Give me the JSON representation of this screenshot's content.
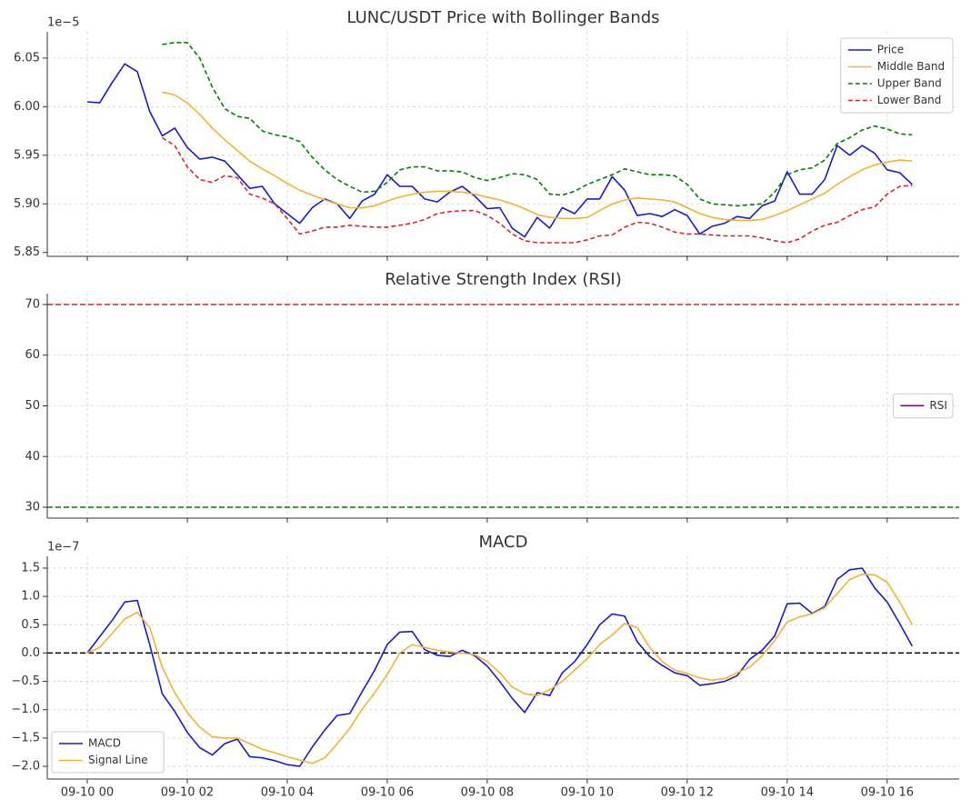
{
  "chart_data": [
    {
      "type": "line",
      "title": "LUNC/USDT Price with Bollinger Bands",
      "offset_label": "1e−5",
      "x": [
        0,
        0.25,
        0.5,
        0.75,
        1,
        1.25,
        1.5,
        1.75,
        2,
        2.25,
        2.5,
        2.75,
        3,
        3.25,
        3.5,
        3.75,
        4,
        4.25,
        4.5,
        4.75,
        5,
        5.25,
        5.5,
        5.75,
        6,
        6.25,
        6.5,
        6.75,
        7,
        7.25,
        7.5,
        7.75,
        8,
        8.25,
        8.5,
        8.75,
        9,
        9.25,
        9.5,
        9.75,
        10,
        10.25,
        10.5,
        10.75,
        11,
        11.25,
        11.5,
        11.75,
        12,
        12.25,
        12.5,
        12.75,
        13,
        13.25,
        13.5,
        13.75,
        14,
        14.25,
        14.5,
        14.75,
        15,
        15.25,
        15.5,
        15.75,
        16,
        16.25,
        16.5
      ],
      "series": [
        {
          "name": "Price",
          "color": "#1a1acc",
          "dash": false,
          "values": [
            6.005,
            6.004,
            6.025,
            6.044,
            6.036,
            5.995,
            5.97,
            5.978,
            5.958,
            5.946,
            5.948,
            5.944,
            5.93,
            5.916,
            5.918,
            5.9,
            5.89,
            5.88,
            5.896,
            5.905,
            5.9,
            5.885,
            5.903,
            5.91,
            5.93,
            5.918,
            5.918,
            5.905,
            5.902,
            5.912,
            5.918,
            5.908,
            5.895,
            5.896,
            5.875,
            5.866,
            5.886,
            5.875,
            5.896,
            5.89,
            5.905,
            5.905,
            5.928,
            5.914,
            5.888,
            5.89,
            5.887,
            5.894,
            5.888,
            5.869,
            5.877,
            5.88,
            5.887,
            5.885,
            5.898,
            5.903,
            5.933,
            5.91,
            5.91,
            5.925,
            5.96,
            5.95,
            5.96,
            5.952,
            5.935,
            5.932,
            5.92
          ]
        },
        {
          "name": "Middle Band",
          "color": "#f5b133",
          "dash": false,
          "values": [
            null,
            null,
            null,
            null,
            null,
            null,
            6.015,
            6.012,
            6.004,
            5.992,
            5.978,
            5.966,
            5.955,
            5.944,
            5.936,
            5.929,
            5.921,
            5.914,
            5.909,
            5.904,
            5.9,
            5.896,
            5.896,
            5.898,
            5.903,
            5.907,
            5.91,
            5.912,
            5.913,
            5.913,
            5.912,
            5.91,
            5.907,
            5.904,
            5.9,
            5.895,
            5.889,
            5.886,
            5.885,
            5.885,
            5.886,
            5.893,
            5.9,
            5.904,
            5.906,
            5.905,
            5.904,
            5.902,
            5.896,
            5.89,
            5.886,
            5.884,
            5.883,
            5.883,
            5.884,
            5.888,
            5.893,
            5.899,
            5.905,
            5.911,
            5.92,
            5.928,
            5.935,
            5.94,
            5.943,
            5.945,
            5.944
          ]
        },
        {
          "name": "Upper Band",
          "color": "#008000",
          "dash": true,
          "values": [
            null,
            null,
            null,
            null,
            null,
            null,
            6.064,
            6.066,
            6.066,
            6.05,
            6.02,
            5.998,
            5.99,
            5.988,
            5.975,
            5.971,
            5.969,
            5.964,
            5.948,
            5.935,
            5.925,
            5.918,
            5.912,
            5.913,
            5.922,
            5.935,
            5.938,
            5.938,
            5.934,
            5.934,
            5.933,
            5.927,
            5.924,
            5.927,
            5.931,
            5.93,
            5.925,
            5.91,
            5.909,
            5.913,
            5.92,
            5.925,
            5.93,
            5.936,
            5.933,
            5.93,
            5.93,
            5.929,
            5.92,
            5.905,
            5.9,
            5.899,
            5.898,
            5.899,
            5.9,
            5.912,
            5.93,
            5.935,
            5.937,
            5.945,
            5.962,
            5.968,
            5.976,
            5.98,
            5.977,
            5.972,
            5.971
          ]
        },
        {
          "name": "Lower Band",
          "color": "#d62728",
          "dash": true,
          "values": [
            null,
            null,
            null,
            null,
            null,
            null,
            5.968,
            5.96,
            5.938,
            5.925,
            5.922,
            5.929,
            5.927,
            5.91,
            5.906,
            5.9,
            5.885,
            5.869,
            5.872,
            5.876,
            5.876,
            5.878,
            5.877,
            5.876,
            5.876,
            5.878,
            5.88,
            5.884,
            5.89,
            5.892,
            5.893,
            5.893,
            5.888,
            5.88,
            5.869,
            5.862,
            5.86,
            5.86,
            5.86,
            5.86,
            5.863,
            5.867,
            5.868,
            5.876,
            5.881,
            5.88,
            5.876,
            5.871,
            5.869,
            5.869,
            5.868,
            5.867,
            5.867,
            5.867,
            5.865,
            5.862,
            5.86,
            5.864,
            5.872,
            5.878,
            5.881,
            5.888,
            5.894,
            5.897,
            5.91,
            5.918,
            5.919
          ]
        }
      ],
      "xlim": [
        -0.8,
        17.44
      ],
      "xticks": [
        0,
        2,
        4,
        6,
        8,
        10,
        12,
        14,
        16
      ],
      "ylim": [
        5.846,
        6.077
      ],
      "yticks": [
        5.85,
        {
          "value": 5.9,
          "label": "5.90"
        },
        5.95,
        {
          "value": 6,
          "label": "6.00"
        },
        6.05
      ],
      "grid": true,
      "legend_loc": "upper right"
    },
    {
      "type": "line",
      "title": "Relative Strength Index (RSI)",
      "series": [
        {
          "name": "RSI",
          "color": "#800080",
          "dash": false
        }
      ],
      "hlines": [
        {
          "value": 70,
          "color": "#d62728"
        },
        {
          "value": 30,
          "color": "#008000"
        }
      ],
      "xlim": [
        -0.8,
        17.44
      ],
      "xticks": [
        0,
        2,
        4,
        6,
        8,
        10,
        12,
        14,
        16
      ],
      "ylim": [
        27.85,
        72.15
      ],
      "yticks": [
        30,
        40,
        50,
        60,
        70
      ],
      "grid": true,
      "legend_loc": "center right"
    },
    {
      "type": "line",
      "title": "MACD",
      "offset_label": "1e−7",
      "x": [
        0,
        0.25,
        0.5,
        0.75,
        1,
        1.25,
        1.5,
        1.75,
        2,
        2.25,
        2.5,
        2.75,
        3,
        3.25,
        3.5,
        3.75,
        4,
        4.25,
        4.5,
        4.75,
        5,
        5.25,
        5.5,
        5.75,
        6,
        6.25,
        6.5,
        6.75,
        7,
        7.25,
        7.5,
        7.75,
        8,
        8.25,
        8.5,
        8.75,
        9,
        9.25,
        9.5,
        9.75,
        10,
        10.25,
        10.5,
        10.75,
        11,
        11.25,
        11.5,
        11.75,
        12,
        12.25,
        12.5,
        12.75,
        13,
        13.25,
        13.5,
        13.75,
        14,
        14.25,
        14.5,
        14.75,
        15,
        15.25,
        15.5,
        15.75,
        16,
        16.25,
        16.5
      ],
      "series": [
        {
          "name": "MACD",
          "color": "#1a1acc",
          "dash": false,
          "values": [
            0,
            0.29,
            0.58,
            0.9,
            0.93,
            0.15,
            -0.72,
            -1.03,
            -1.4,
            -1.67,
            -1.8,
            -1.6,
            -1.52,
            -1.83,
            -1.85,
            -1.9,
            -1.97,
            -2.0,
            -1.66,
            -1.36,
            -1.1,
            -1.07,
            -0.68,
            -0.3,
            0.15,
            0.37,
            0.38,
            0.06,
            -0.04,
            -0.06,
            0.05,
            -0.05,
            -0.23,
            -0.5,
            -0.8,
            -1.05,
            -0.7,
            -0.75,
            -0.35,
            -0.15,
            0.15,
            0.5,
            0.69,
            0.65,
            0.2,
            -0.06,
            -0.22,
            -0.35,
            -0.4,
            -0.57,
            -0.54,
            -0.5,
            -0.4,
            -0.11,
            0.05,
            0.3,
            0.87,
            0.88,
            0.7,
            0.82,
            1.3,
            1.47,
            1.5,
            1.15,
            0.9,
            0.52,
            0.12
          ]
        },
        {
          "name": "Signal Line",
          "color": "#f5b133",
          "dash": false,
          "values": [
            0,
            0.1,
            0.35,
            0.6,
            0.72,
            0.45,
            -0.25,
            -0.7,
            -1.05,
            -1.31,
            -1.48,
            -1.5,
            -1.5,
            -1.6,
            -1.7,
            -1.76,
            -1.83,
            -1.89,
            -1.95,
            -1.85,
            -1.6,
            -1.33,
            -0.99,
            -0.7,
            -0.38,
            0,
            0.15,
            0.1,
            0.05,
            0.02,
            0,
            -0.03,
            -0.15,
            -0.35,
            -0.6,
            -0.72,
            -0.75,
            -0.65,
            -0.5,
            -0.3,
            -0.1,
            0.15,
            0.32,
            0.52,
            0.45,
            0.1,
            -0.15,
            -0.3,
            -0.36,
            -0.44,
            -0.48,
            -0.45,
            -0.35,
            -0.25,
            -0.05,
            0.22,
            0.55,
            0.64,
            0.69,
            0.8,
            1.05,
            1.3,
            1.39,
            1.38,
            1.25,
            0.9,
            0.5
          ]
        }
      ],
      "hlines": [
        {
          "value": 0,
          "color": "#000000"
        }
      ],
      "xlim": [
        -0.8,
        17.44
      ],
      "xticks": [
        {
          "value": 0,
          "label": "09-10 00"
        },
        {
          "value": 2,
          "label": "09-10 02"
        },
        {
          "value": 4,
          "label": "09-10 04"
        },
        {
          "value": 6,
          "label": "09-10 06"
        },
        {
          "value": 8,
          "label": "09-10 08"
        },
        {
          "value": 10,
          "label": "09-10 10"
        },
        {
          "value": 12,
          "label": "09-10 12"
        },
        {
          "value": 14,
          "label": "09-10 14"
        },
        {
          "value": 16,
          "label": "09-10 16"
        }
      ],
      "ylim": [
        -2.224,
        1.708
      ],
      "yticks": [
        {
          "value": -2,
          "label": "−2.0"
        },
        {
          "value": -1.5,
          "label": "−1.5"
        },
        {
          "value": -1,
          "label": "−1.0"
        },
        {
          "value": -0.5,
          "label": "−0.5"
        },
        {
          "value": 0,
          "label": "0.0"
        },
        0.5,
        {
          "value": 1,
          "label": "1.0"
        },
        1.5
      ],
      "grid": true,
      "legend_loc": "lower left"
    }
  ]
}
